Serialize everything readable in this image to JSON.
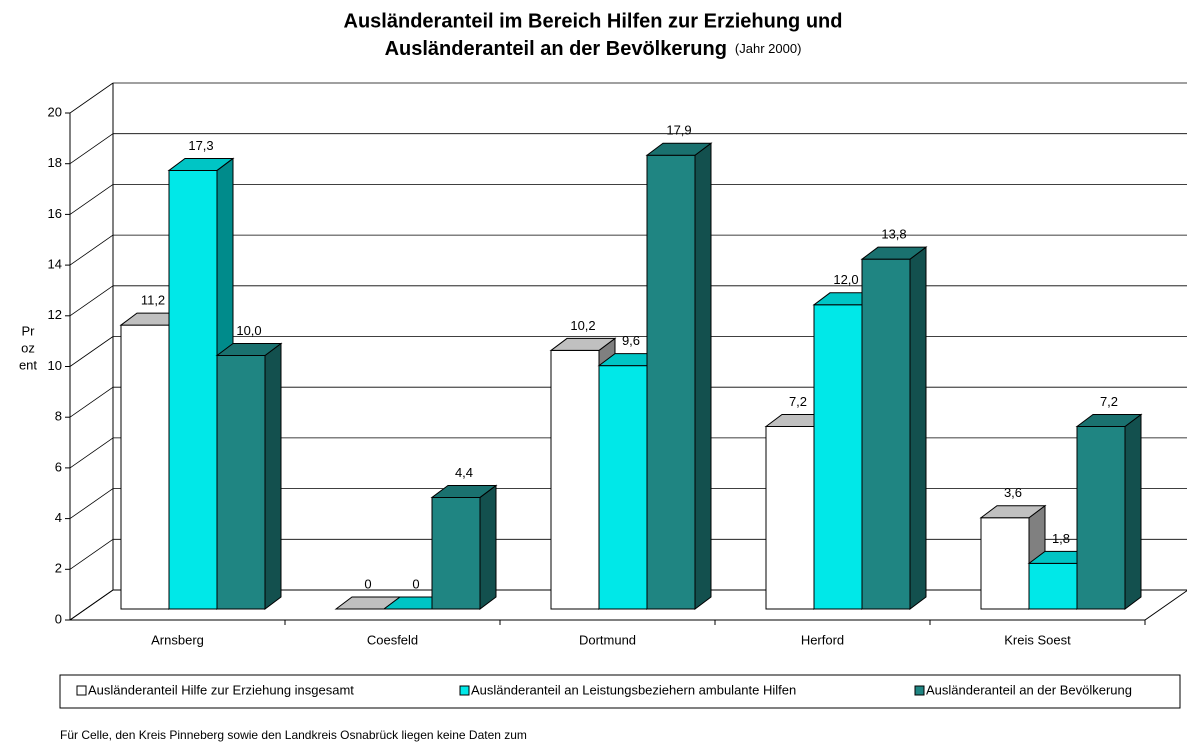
{
  "chart_data": {
    "type": "bar3d",
    "title": [
      "Ausländeranteil im Bereich Hilfen zur Erziehung und",
      "Ausländeranteil an der Bevölkerung"
    ],
    "subtitle": "(Jahr 2000)",
    "ylabel": [
      "Pr",
      "oz",
      "ent"
    ],
    "categories": [
      "Arnsberg",
      "Coesfeld",
      "Dortmund",
      "Herford",
      "Kreis Soest"
    ],
    "series": [
      {
        "name": "Ausländeranteil Hilfe zur Erziehung insgesamt",
        "color": "#ffffff",
        "values": [
          11.2,
          0,
          10.2,
          7.2,
          3.6
        ],
        "value_labels": [
          "11,2",
          "0",
          "10,2",
          "7,2",
          "3,6"
        ]
      },
      {
        "name": "Ausländeranteil an Leistungsbeziehern ambulante Hilfen",
        "color": "#00e8e8",
        "values": [
          17.3,
          0,
          9.6,
          12.0,
          1.8
        ],
        "value_labels": [
          "17,3",
          "0",
          "9,6",
          "12,0",
          "1,8"
        ]
      },
      {
        "name": "Ausländeranteil an der Bevölkerung",
        "color": "#1f8582",
        "values": [
          10.0,
          4.4,
          17.9,
          13.8,
          7.2
        ],
        "value_labels": [
          "10,0",
          "4,4",
          "17,9",
          "13,8",
          "7,2"
        ]
      }
    ],
    "ylim": [
      0,
      20
    ],
    "yticks": [
      0,
      2,
      4,
      6,
      8,
      10,
      12,
      14,
      16,
      18,
      20
    ],
    "grid": true,
    "legend": "bottom",
    "footnote": "Für Celle, den Kreis Pinneberg sowie den Landkreis Osnabrück liegen keine Daten zum"
  }
}
